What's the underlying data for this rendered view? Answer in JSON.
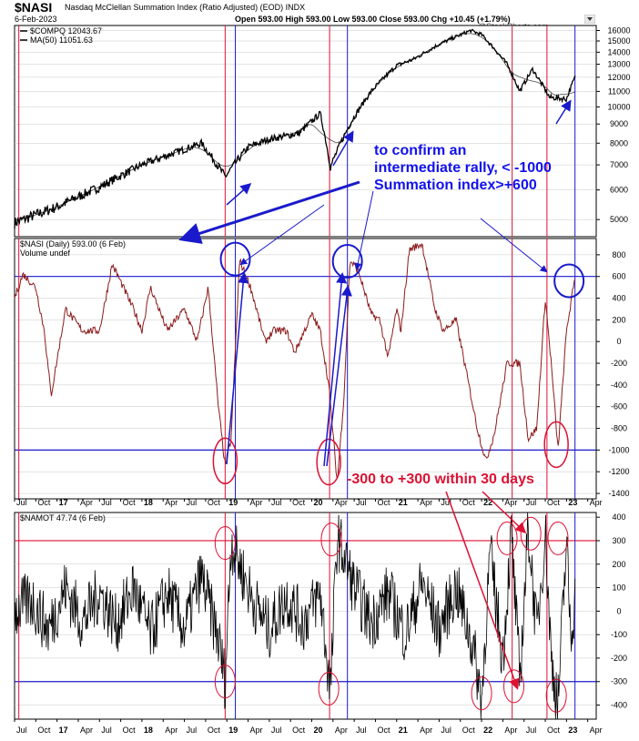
{
  "header": {
    "symbol": "$NASI",
    "name": "Nasdaq McClellan Summation Index (Ratio Adjusted) (EOD)  INDX",
    "date": "6-Feb-2023",
    "ohlc": "Open 593.00  High 593.00  Low 593.00  Close 593.00  Chg +10.45 (+1.79%)",
    "watermark": "@StockCharts.com",
    "menu_icon": "dropdown-triangle-icon"
  },
  "annotations": {
    "blue_text": "to confirm an intermediate rally, < -1000 Summation index>+600",
    "red_text": "-300 to +300 within 30 days"
  },
  "colors": {
    "price": "#000000",
    "nasi": "#8b1a1a",
    "nasi_black": "#000000",
    "namot": "#000000",
    "blue": "#1a1acc",
    "red": "#dd1133",
    "grid": "#c8c8c8"
  },
  "chart_data": [
    {
      "type": "line",
      "panel": "price",
      "legend": [
        "$COMPQ 12043.67",
        "MA(50) 11051.63"
      ],
      "ylim": [
        4500,
        16500
      ],
      "yticks": [
        5000,
        6000,
        7000,
        8000,
        9000,
        10000,
        11000,
        12000,
        13000,
        14000,
        15000,
        16000
      ],
      "scale": "log",
      "x": [
        2016.5,
        2017.0,
        2017.5,
        2018.0,
        2018.5,
        2018.7,
        2018.98,
        2019.25,
        2019.5,
        2019.85,
        2020.1,
        2020.22,
        2020.45,
        2020.7,
        2021.0,
        2021.2,
        2021.5,
        2021.87,
        2022.0,
        2022.3,
        2022.45,
        2022.6,
        2022.8,
        2023.0,
        2023.1
      ],
      "values": [
        4900,
        5400,
        6100,
        7000,
        7700,
        8000,
        6500,
        7800,
        8200,
        8500,
        9600,
        6900,
        9000,
        11000,
        12900,
        13400,
        14700,
        16000,
        15600,
        13000,
        11000,
        12600,
        10600,
        10500,
        12000
      ],
      "series": [
        {
          "name": "$COMPQ"
        },
        {
          "name": "MA(50)"
        }
      ]
    },
    {
      "type": "line",
      "panel": "nasi",
      "legend": [
        "$NASI (Daily) 593.00 (6 Feb)",
        "Volume undef"
      ],
      "ylim": [
        -1450,
        950
      ],
      "yticks": [
        -1400,
        -1200,
        -1000,
        -800,
        -600,
        -400,
        -200,
        0,
        200,
        400,
        600,
        800
      ],
      "hlines": [
        600,
        -1000
      ],
      "x": [
        2016.5,
        2016.6,
        2016.75,
        2016.85,
        2016.93,
        2017.1,
        2017.3,
        2017.5,
        2017.65,
        2017.72,
        2017.9,
        2018.0,
        2018.1,
        2018.3,
        2018.5,
        2018.65,
        2018.78,
        2018.9,
        2018.98,
        2019.05,
        2019.15,
        2019.28,
        2019.45,
        2019.55,
        2019.7,
        2019.8,
        2020.0,
        2020.1,
        2020.2,
        2020.3,
        2020.38,
        2020.45,
        2020.55,
        2020.7,
        2020.8,
        2020.9,
        2021.0,
        2021.05,
        2021.15,
        2021.3,
        2021.45,
        2021.55,
        2021.7,
        2021.85,
        2021.95,
        2022.05,
        2022.15,
        2022.3,
        2022.45,
        2022.55,
        2022.65,
        2022.75,
        2022.82,
        2022.9,
        2023.0,
        2023.1
      ],
      "values": [
        400,
        620,
        500,
        100,
        -500,
        300,
        100,
        100,
        710,
        600,
        300,
        100,
        500,
        100,
        300,
        0,
        500,
        -600,
        -1150,
        -900,
        750,
        500,
        0,
        100,
        100,
        -100,
        250,
        100,
        -400,
        -1300,
        -500,
        750,
        650,
        250,
        200,
        -150,
        300,
        100,
        850,
        900,
        300,
        100,
        200,
        -400,
        -800,
        -1100,
        -850,
        -200,
        -200,
        -900,
        -800,
        400,
        -200,
        -1000,
        100,
        593
      ]
    },
    {
      "type": "line",
      "panel": "namot",
      "legend": [
        "$NAMOT 47.74 (6 Feb)"
      ],
      "ylim": [
        -460,
        420
      ],
      "yticks": [
        -400,
        -300,
        -200,
        -100,
        0,
        100,
        200,
        300,
        400
      ],
      "hlines": [
        300,
        -300
      ],
      "x": [
        2016.5,
        2016.7,
        2016.9,
        2017.1,
        2017.3,
        2017.5,
        2017.7,
        2017.9,
        2018.1,
        2018.3,
        2018.5,
        2018.7,
        2018.9,
        2018.98,
        2019.05,
        2019.3,
        2019.5,
        2019.7,
        2019.9,
        2020.1,
        2020.22,
        2020.3,
        2020.5,
        2020.7,
        2020.9,
        2021.1,
        2021.3,
        2021.5,
        2021.7,
        2021.9,
        2022.0,
        2022.1,
        2022.25,
        2022.35,
        2022.45,
        2022.55,
        2022.65,
        2022.75,
        2022.82,
        2022.9,
        2023.0,
        2023.05,
        2023.1
      ],
      "values": [
        0,
        50,
        -80,
        100,
        -50,
        80,
        -60,
        100,
        -100,
        80,
        -80,
        150,
        -120,
        -300,
        300,
        50,
        -80,
        60,
        -50,
        80,
        -350,
        320,
        100,
        -50,
        80,
        -100,
        120,
        -80,
        100,
        -150,
        -380,
        250,
        -200,
        330,
        -300,
        360,
        -100,
        340,
        -200,
        -400,
        300,
        -100,
        48
      ]
    }
  ],
  "x_axis": {
    "labels": [
      "Jul",
      "Oct",
      "17",
      "Apr",
      "Jul",
      "Oct",
      "18",
      "Apr",
      "Jul",
      "Oct",
      "19",
      "Apr",
      "Jul",
      "Oct",
      "20",
      "Apr",
      "Jul",
      "Oct",
      "21",
      "Apr",
      "Jul",
      "Oct",
      "22",
      "Apr",
      "Jul",
      "Oct",
      "23",
      "Apr"
    ],
    "bold": [
      "17",
      "18",
      "19",
      "20",
      "21",
      "22",
      "23"
    ]
  },
  "vertical_markers": {
    "red": [
      2016.55,
      2018.98,
      2020.21,
      2022.36,
      2022.77
    ],
    "blue": [
      2019.1,
      2020.42,
      2023.1
    ]
  }
}
